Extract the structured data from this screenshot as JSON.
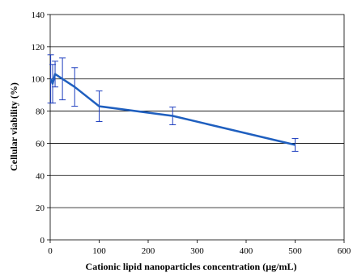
{
  "chart_data": {
    "type": "line",
    "title": "",
    "xlabel": "Cationic lipid nanoparticles concentration (µg/mL)",
    "ylabel": "Cellular viability (%)",
    "xlim": [
      0,
      600
    ],
    "ylim": [
      0,
      140
    ],
    "xticks": [
      0,
      100,
      200,
      300,
      400,
      500,
      600
    ],
    "yticks": [
      0,
      20,
      40,
      60,
      80,
      100,
      120,
      140
    ],
    "grid": "horizontal",
    "legend": "none",
    "series": [
      {
        "color": "#1f5fbf",
        "points": [
          {
            "x": 1,
            "y": 100,
            "err": 15
          },
          {
            "x": 5,
            "y": 97,
            "err": 12
          },
          {
            "x": 10,
            "y": 103,
            "err": 8
          },
          {
            "x": 25,
            "y": 100,
            "err": 13
          },
          {
            "x": 50,
            "y": 95,
            "err": 12
          },
          {
            "x": 100,
            "y": 83,
            "err": 9.5
          },
          {
            "x": 250,
            "y": 77,
            "err": 5.5
          },
          {
            "x": 500,
            "y": 59,
            "err": 4
          }
        ]
      }
    ]
  }
}
